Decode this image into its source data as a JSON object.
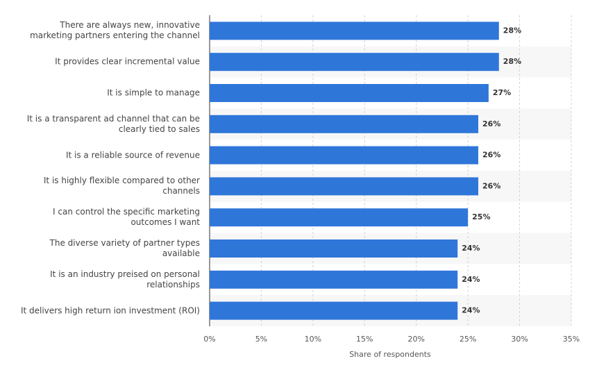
{
  "chart_data": {
    "type": "hbar",
    "categories": [
      "There are always new, innovative marketing partners entering the channel",
      "It provides clear incremental value",
      "It is simple to manage",
      "It is a transparent ad channel that can be clearly tied to sales",
      "It is a reliable source of revenue",
      "It is highly flexible compared to other channels",
      "I can control the specific marketing outcomes I want",
      "The diverse variety of partner types available",
      "It is an industry preised on personal relationships",
      "It delivers high return ion investment (ROI)"
    ],
    "values": [
      28,
      28,
      27,
      26,
      26,
      26,
      25,
      24,
      24,
      24
    ],
    "value_labels": [
      "28%",
      "28%",
      "27%",
      "26%",
      "26%",
      "26%",
      "25%",
      "24%",
      "24%",
      "24%"
    ],
    "color": "#2f76d9",
    "xlim": [
      0,
      35
    ],
    "xticks": [
      {
        "value": 0,
        "label": "0%"
      },
      {
        "value": 5,
        "label": "5%"
      },
      {
        "value": 10,
        "label": "10%"
      },
      {
        "value": 15,
        "label": "15%"
      },
      {
        "value": 20,
        "label": "20%"
      },
      {
        "value": 25,
        "label": "25%"
      },
      {
        "value": 30,
        "label": "30%"
      },
      {
        "value": 35,
        "label": "35%"
      }
    ],
    "xlabel": "Share of respondents",
    "grid": true
  }
}
